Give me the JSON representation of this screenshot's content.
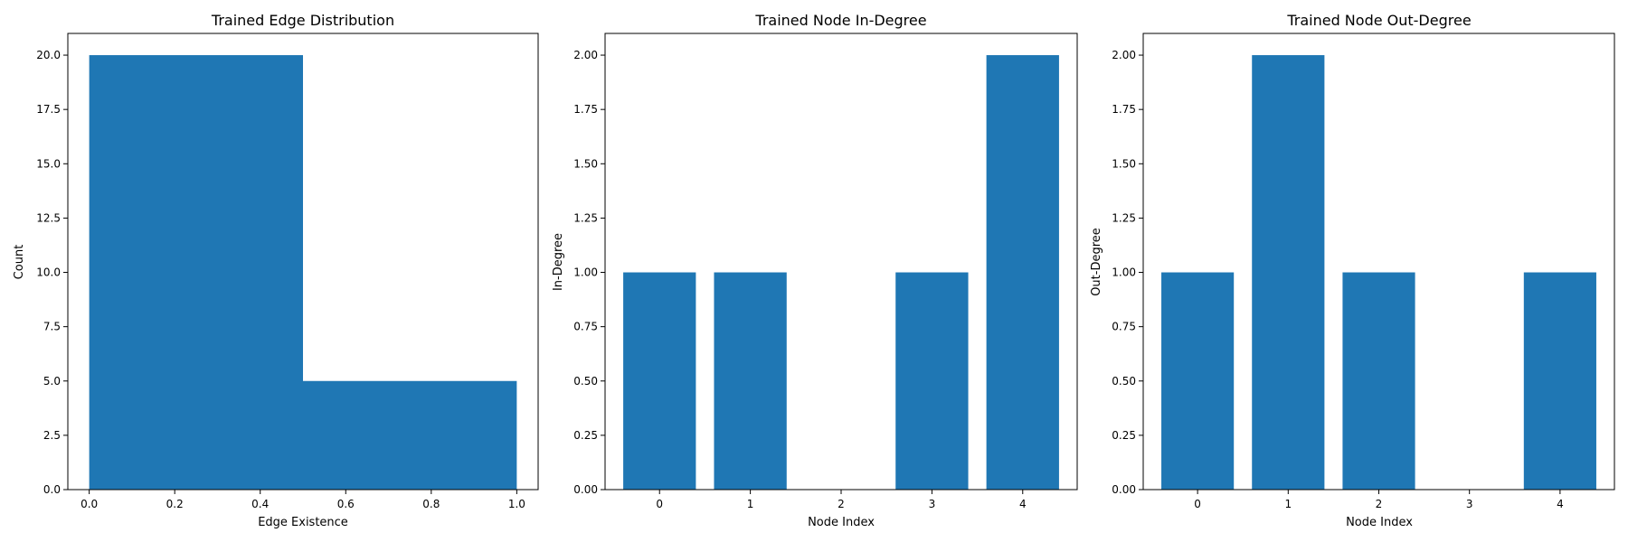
{
  "figure": {
    "bar_color": "#1f77b4"
  },
  "chart_data": [
    {
      "type": "bar",
      "subtype": "histogram",
      "title": "Trained Edge Distribution",
      "xlabel": "Edge Existence",
      "ylabel": "Count",
      "bins": [
        {
          "x0": 0.0,
          "x1": 0.5,
          "value": 20
        },
        {
          "x0": 0.5,
          "x1": 1.0,
          "value": 5
        }
      ],
      "xlim": [
        -0.05,
        1.05
      ],
      "ylim": [
        0,
        21
      ],
      "xticks": [
        0.0,
        0.2,
        0.4,
        0.6,
        0.8,
        1.0
      ],
      "xtick_labels": [
        "0.0",
        "0.2",
        "0.4",
        "0.6",
        "0.8",
        "1.0"
      ],
      "yticks": [
        0.0,
        2.5,
        5.0,
        7.5,
        10.0,
        12.5,
        15.0,
        17.5,
        20.0
      ],
      "ytick_labels": [
        "0.0",
        "2.5",
        "5.0",
        "7.5",
        "10.0",
        "12.5",
        "15.0",
        "17.5",
        "20.0"
      ],
      "grid": false
    },
    {
      "type": "bar",
      "title": "Trained Node In-Degree",
      "xlabel": "Node Index",
      "ylabel": "In-Degree",
      "categories": [
        0,
        1,
        2,
        3,
        4
      ],
      "values": [
        1,
        1,
        0,
        1,
        2
      ],
      "bar_width": 0.8,
      "xlim": [
        -0.6,
        4.6
      ],
      "ylim": [
        0,
        2.1
      ],
      "xticks": [
        0,
        1,
        2,
        3,
        4
      ],
      "xtick_labels": [
        "0",
        "1",
        "2",
        "3",
        "4"
      ],
      "yticks": [
        0.0,
        0.25,
        0.5,
        0.75,
        1.0,
        1.25,
        1.5,
        1.75,
        2.0
      ],
      "ytick_labels": [
        "0.00",
        "0.25",
        "0.50",
        "0.75",
        "1.00",
        "1.25",
        "1.50",
        "1.75",
        "2.00"
      ],
      "grid": false
    },
    {
      "type": "bar",
      "title": "Trained Node Out-Degree",
      "xlabel": "Node Index",
      "ylabel": "Out-Degree",
      "categories": [
        0,
        1,
        2,
        3,
        4
      ],
      "values": [
        1,
        2,
        1,
        0,
        1
      ],
      "bar_width": 0.8,
      "xlim": [
        -0.6,
        4.6
      ],
      "ylim": [
        0,
        2.1
      ],
      "xticks": [
        0,
        1,
        2,
        3,
        4
      ],
      "xtick_labels": [
        "0",
        "1",
        "2",
        "3",
        "4"
      ],
      "yticks": [
        0.0,
        0.25,
        0.5,
        0.75,
        1.0,
        1.25,
        1.5,
        1.75,
        2.0
      ],
      "ytick_labels": [
        "0.00",
        "0.25",
        "0.50",
        "0.75",
        "1.00",
        "1.25",
        "1.50",
        "1.75",
        "2.00"
      ],
      "grid": false
    }
  ]
}
